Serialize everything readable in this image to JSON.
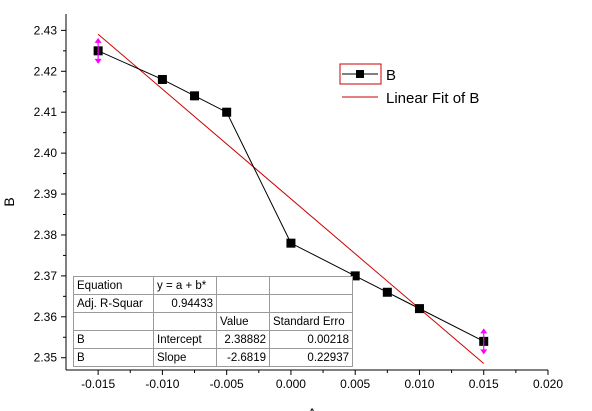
{
  "chart_data": {
    "type": "line",
    "title": "",
    "xlabel": "A",
    "ylabel": "B",
    "xlim": [
      -0.0175,
      0.02
    ],
    "ylim": [
      2.347,
      2.434
    ],
    "x_ticks": [
      "-0.015",
      "-0.010",
      "-0.005",
      "0.000",
      "0.005",
      "0.010",
      "0.015",
      "0.020"
    ],
    "x_tick_values": [
      -0.015,
      -0.01,
      -0.005,
      0.0,
      0.005,
      0.01,
      0.015,
      0.02
    ],
    "y_ticks": [
      "2.35",
      "2.36",
      "2.37",
      "2.38",
      "2.39",
      "2.40",
      "2.41",
      "2.42",
      "2.43"
    ],
    "y_tick_values": [
      2.35,
      2.36,
      2.37,
      2.38,
      2.39,
      2.4,
      2.41,
      2.42,
      2.43
    ],
    "series": [
      {
        "name": "B",
        "color": "#000000",
        "x": [
          -0.015,
          -0.01,
          -0.0075,
          -0.005,
          0.0,
          0.005,
          0.0075,
          0.01,
          0.015
        ],
        "y": [
          2.425,
          2.418,
          2.414,
          2.41,
          2.378,
          2.37,
          2.366,
          2.362,
          2.354
        ]
      },
      {
        "name": "Linear Fit of B",
        "color": "#cc0000",
        "x": [
          -0.015,
          0.015
        ],
        "y": [
          2.42905,
          2.34859
        ]
      }
    ],
    "error_markers": [
      {
        "x": -0.015,
        "y": 2.425,
        "color": "#ff00ff"
      },
      {
        "x": 0.015,
        "y": 2.354,
        "color": "#ff00ff"
      }
    ],
    "legend": {
      "placement": "top-right",
      "items": [
        {
          "label": "B",
          "color": "#000000",
          "style": "line-square"
        },
        {
          "label": "Linear Fit of B",
          "color": "#cc0000",
          "style": "line"
        }
      ]
    },
    "grid": false
  },
  "fit_table": {
    "rows": [
      [
        "Equation",
        "y = a + b*",
        "",
        ""
      ],
      [
        "Adj. R-Squar",
        "0.94433",
        "",
        ""
      ],
      [
        "",
        "",
        "Value",
        "Standard Erro"
      ],
      [
        "B",
        "Intercept",
        "2.38882",
        "0.00218"
      ],
      [
        "B",
        "Slope",
        "-2.6819",
        "0.22937"
      ]
    ]
  }
}
